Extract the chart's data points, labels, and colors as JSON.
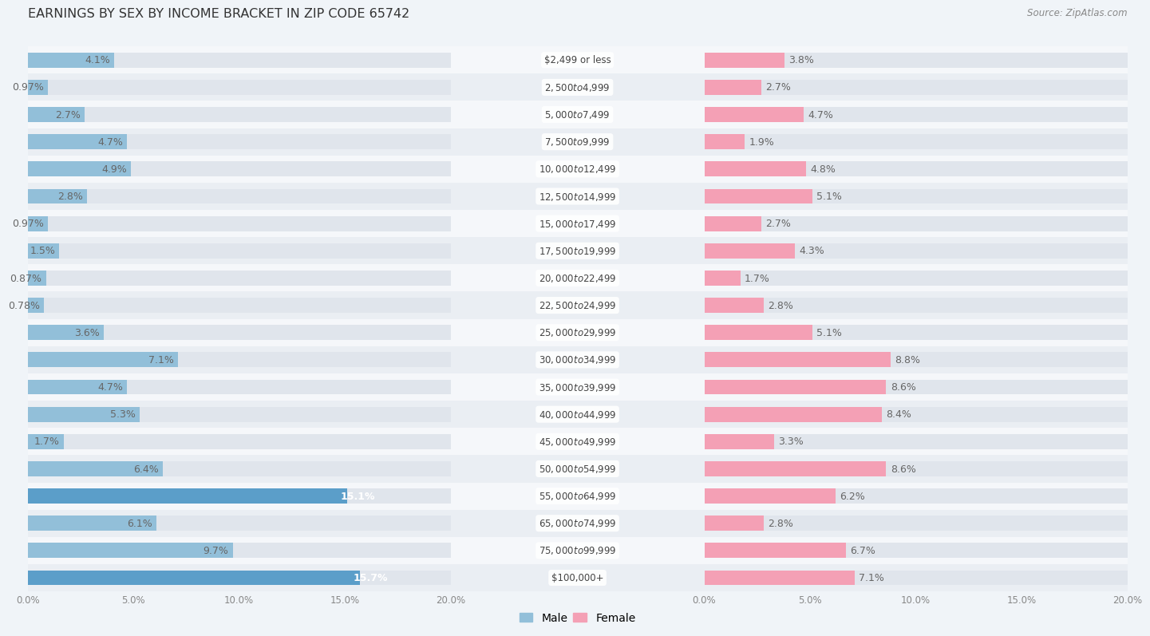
{
  "title": "EARNINGS BY SEX BY INCOME BRACKET IN ZIP CODE 65742",
  "source": "Source: ZipAtlas.com",
  "categories": [
    "$2,499 or less",
    "$2,500 to $4,999",
    "$5,000 to $7,499",
    "$7,500 to $9,999",
    "$10,000 to $12,499",
    "$12,500 to $14,999",
    "$15,000 to $17,499",
    "$17,500 to $19,999",
    "$20,000 to $22,499",
    "$22,500 to $24,999",
    "$25,000 to $29,999",
    "$30,000 to $34,999",
    "$35,000 to $39,999",
    "$40,000 to $44,999",
    "$45,000 to $49,999",
    "$50,000 to $54,999",
    "$55,000 to $64,999",
    "$65,000 to $74,999",
    "$75,000 to $99,999",
    "$100,000+"
  ],
  "male_values": [
    4.1,
    0.97,
    2.7,
    4.7,
    4.9,
    2.8,
    0.97,
    1.5,
    0.87,
    0.78,
    3.6,
    7.1,
    4.7,
    5.3,
    1.7,
    6.4,
    15.1,
    6.1,
    9.7,
    15.7
  ],
  "female_values": [
    3.8,
    2.7,
    4.7,
    1.9,
    4.8,
    5.1,
    2.7,
    4.3,
    1.7,
    2.8,
    5.1,
    8.8,
    8.6,
    8.4,
    3.3,
    8.6,
    6.2,
    2.8,
    6.7,
    7.1
  ],
  "male_color": "#92bfd9",
  "female_color": "#f4a0b5",
  "male_highlight_color": "#5b9ec9",
  "row_bg_even": "#f5f7fa",
  "row_bg_odd": "#eaeef3",
  "center_bg": "#ffffff",
  "bar_bg_color": "#e0e5ec",
  "xlim": 20.0,
  "bar_height": 0.55,
  "label_fontsize": 9.0,
  "cat_fontsize": 8.5,
  "title_fontsize": 11.5,
  "source_fontsize": 8.5
}
